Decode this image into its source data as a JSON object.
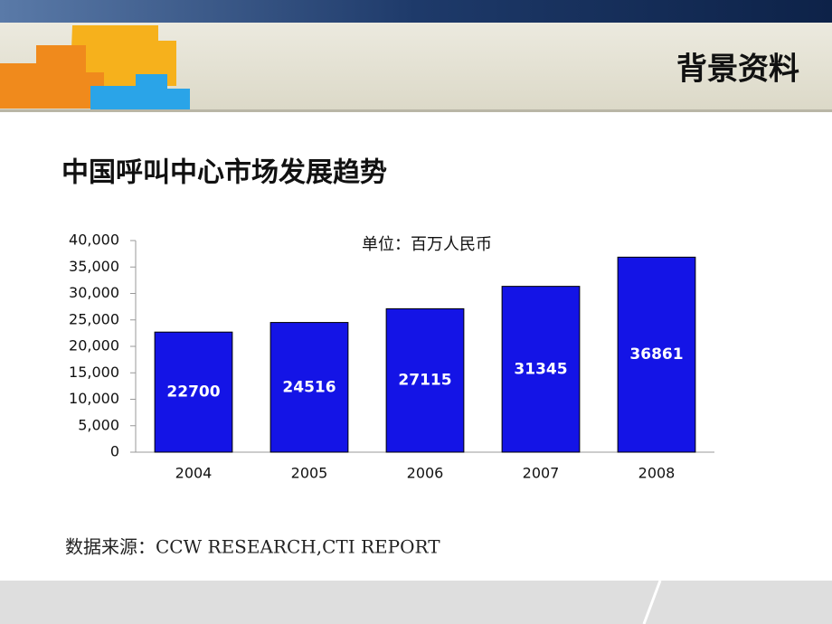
{
  "header": {
    "title": "背景资料"
  },
  "chart_data": {
    "type": "bar",
    "title": "中国呼叫中心市场发展趋势",
    "unit_label": "单位：百万人民币",
    "categories": [
      "2004",
      "2005",
      "2006",
      "2007",
      "2008"
    ],
    "values": [
      22700,
      24516,
      27115,
      31345,
      36861
    ],
    "color": "#1414e6",
    "ylim": [
      0,
      40000
    ],
    "yticks": [
      0,
      {
        "value": 5000,
        "label": "5,000"
      },
      {
        "value": 10000,
        "label": "10,000"
      },
      {
        "value": 15000,
        "label": "15,000"
      },
      {
        "value": 20000,
        "label": "20,000"
      },
      {
        "value": 25000,
        "label": "25,000"
      },
      {
        "value": 30000,
        "label": "30,000"
      },
      {
        "value": 35000,
        "label": "35,000"
      },
      {
        "value": 40000,
        "label": "40,000"
      }
    ],
    "grid": false
  },
  "source": "数据来源：CCW RESEARCH,CTI REPORT"
}
